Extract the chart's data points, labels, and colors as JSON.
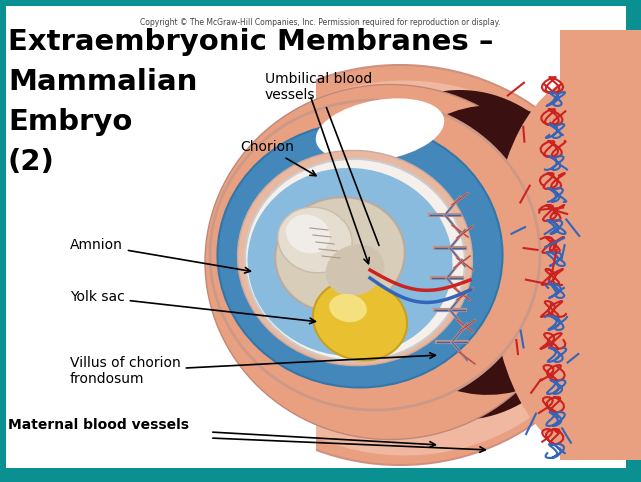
{
  "title_line1": "Extraembryonic Membranes –",
  "title_line2": "Mammalian",
  "title_line3": "Embryo",
  "title_line4": "(2)",
  "copyright": "Copyright © The McGraw-Hill Companies, Inc. Permission required for reproduction or display.",
  "labels": {
    "umbilical": "Umbilical blood\nvessels",
    "chorion": "Chorion",
    "amnion": "Amnion",
    "yolk_sac": "Yolk sac",
    "villus": "Villus of chorion\nfrondosum",
    "maternal": "Maternal blood vessels"
  },
  "bg_outer": "#0a9090",
  "skin_color": "#e8a080",
  "skin_light": "#f0c0b0",
  "dark_tissue": "#3a1010",
  "blue_fluid": "#4488bb",
  "blue_light": "#88bbdd",
  "yolk_color": "#e8c030",
  "yolk_light": "#f5e080",
  "embryo_color": "#ddd0b0",
  "chorion_ring": "#cc9988",
  "red_vessel": "#cc2222",
  "blue_vessel": "#3366bb",
  "white": "#ffffff",
  "title_fs": 21,
  "label_fs": 10,
  "copy_fs": 5.5
}
